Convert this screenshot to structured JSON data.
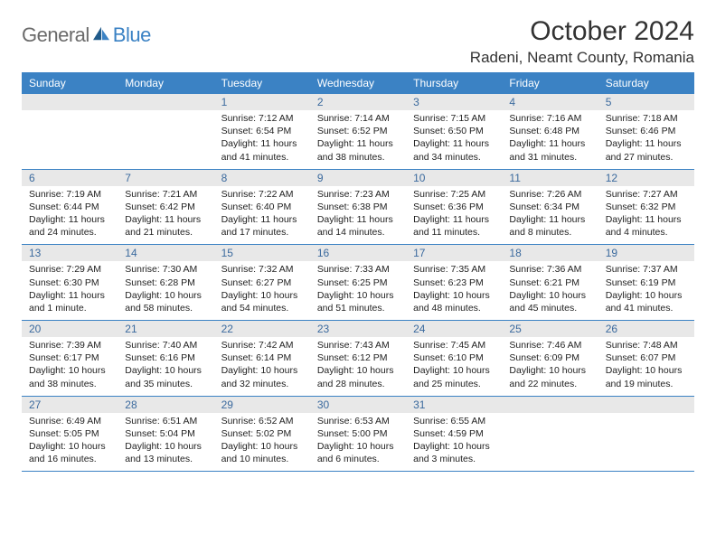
{
  "brand": {
    "part1": "General",
    "part2": "Blue"
  },
  "title": "October 2024",
  "location": "Radeni, Neamt County, Romania",
  "colors": {
    "accent": "#3b82c4",
    "header_bg": "#3b82c4",
    "header_text": "#ffffff",
    "daynum_bg": "#e8e8e8",
    "daynum_text": "#3b6a9e",
    "body_text": "#222222",
    "logo_gray": "#6a6a6a"
  },
  "day_names": [
    "Sunday",
    "Monday",
    "Tuesday",
    "Wednesday",
    "Thursday",
    "Friday",
    "Saturday"
  ],
  "weeks": [
    [
      null,
      null,
      {
        "n": "1",
        "sunrise": "7:12 AM",
        "sunset": "6:54 PM",
        "daylight": "11 hours and 41 minutes."
      },
      {
        "n": "2",
        "sunrise": "7:14 AM",
        "sunset": "6:52 PM",
        "daylight": "11 hours and 38 minutes."
      },
      {
        "n": "3",
        "sunrise": "7:15 AM",
        "sunset": "6:50 PM",
        "daylight": "11 hours and 34 minutes."
      },
      {
        "n": "4",
        "sunrise": "7:16 AM",
        "sunset": "6:48 PM",
        "daylight": "11 hours and 31 minutes."
      },
      {
        "n": "5",
        "sunrise": "7:18 AM",
        "sunset": "6:46 PM",
        "daylight": "11 hours and 27 minutes."
      }
    ],
    [
      {
        "n": "6",
        "sunrise": "7:19 AM",
        "sunset": "6:44 PM",
        "daylight": "11 hours and 24 minutes."
      },
      {
        "n": "7",
        "sunrise": "7:21 AM",
        "sunset": "6:42 PM",
        "daylight": "11 hours and 21 minutes."
      },
      {
        "n": "8",
        "sunrise": "7:22 AM",
        "sunset": "6:40 PM",
        "daylight": "11 hours and 17 minutes."
      },
      {
        "n": "9",
        "sunrise": "7:23 AM",
        "sunset": "6:38 PM",
        "daylight": "11 hours and 14 minutes."
      },
      {
        "n": "10",
        "sunrise": "7:25 AM",
        "sunset": "6:36 PM",
        "daylight": "11 hours and 11 minutes."
      },
      {
        "n": "11",
        "sunrise": "7:26 AM",
        "sunset": "6:34 PM",
        "daylight": "11 hours and 8 minutes."
      },
      {
        "n": "12",
        "sunrise": "7:27 AM",
        "sunset": "6:32 PM",
        "daylight": "11 hours and 4 minutes."
      }
    ],
    [
      {
        "n": "13",
        "sunrise": "7:29 AM",
        "sunset": "6:30 PM",
        "daylight": "11 hours and 1 minute."
      },
      {
        "n": "14",
        "sunrise": "7:30 AM",
        "sunset": "6:28 PM",
        "daylight": "10 hours and 58 minutes."
      },
      {
        "n": "15",
        "sunrise": "7:32 AM",
        "sunset": "6:27 PM",
        "daylight": "10 hours and 54 minutes."
      },
      {
        "n": "16",
        "sunrise": "7:33 AM",
        "sunset": "6:25 PM",
        "daylight": "10 hours and 51 minutes."
      },
      {
        "n": "17",
        "sunrise": "7:35 AM",
        "sunset": "6:23 PM",
        "daylight": "10 hours and 48 minutes."
      },
      {
        "n": "18",
        "sunrise": "7:36 AM",
        "sunset": "6:21 PM",
        "daylight": "10 hours and 45 minutes."
      },
      {
        "n": "19",
        "sunrise": "7:37 AM",
        "sunset": "6:19 PM",
        "daylight": "10 hours and 41 minutes."
      }
    ],
    [
      {
        "n": "20",
        "sunrise": "7:39 AM",
        "sunset": "6:17 PM",
        "daylight": "10 hours and 38 minutes."
      },
      {
        "n": "21",
        "sunrise": "7:40 AM",
        "sunset": "6:16 PM",
        "daylight": "10 hours and 35 minutes."
      },
      {
        "n": "22",
        "sunrise": "7:42 AM",
        "sunset": "6:14 PM",
        "daylight": "10 hours and 32 minutes."
      },
      {
        "n": "23",
        "sunrise": "7:43 AM",
        "sunset": "6:12 PM",
        "daylight": "10 hours and 28 minutes."
      },
      {
        "n": "24",
        "sunrise": "7:45 AM",
        "sunset": "6:10 PM",
        "daylight": "10 hours and 25 minutes."
      },
      {
        "n": "25",
        "sunrise": "7:46 AM",
        "sunset": "6:09 PM",
        "daylight": "10 hours and 22 minutes."
      },
      {
        "n": "26",
        "sunrise": "7:48 AM",
        "sunset": "6:07 PM",
        "daylight": "10 hours and 19 minutes."
      }
    ],
    [
      {
        "n": "27",
        "sunrise": "6:49 AM",
        "sunset": "5:05 PM",
        "daylight": "10 hours and 16 minutes."
      },
      {
        "n": "28",
        "sunrise": "6:51 AM",
        "sunset": "5:04 PM",
        "daylight": "10 hours and 13 minutes."
      },
      {
        "n": "29",
        "sunrise": "6:52 AM",
        "sunset": "5:02 PM",
        "daylight": "10 hours and 10 minutes."
      },
      {
        "n": "30",
        "sunrise": "6:53 AM",
        "sunset": "5:00 PM",
        "daylight": "10 hours and 6 minutes."
      },
      {
        "n": "31",
        "sunrise": "6:55 AM",
        "sunset": "4:59 PM",
        "daylight": "10 hours and 3 minutes."
      },
      null,
      null
    ]
  ],
  "labels": {
    "sunrise": "Sunrise:",
    "sunset": "Sunset:",
    "daylight": "Daylight:"
  }
}
